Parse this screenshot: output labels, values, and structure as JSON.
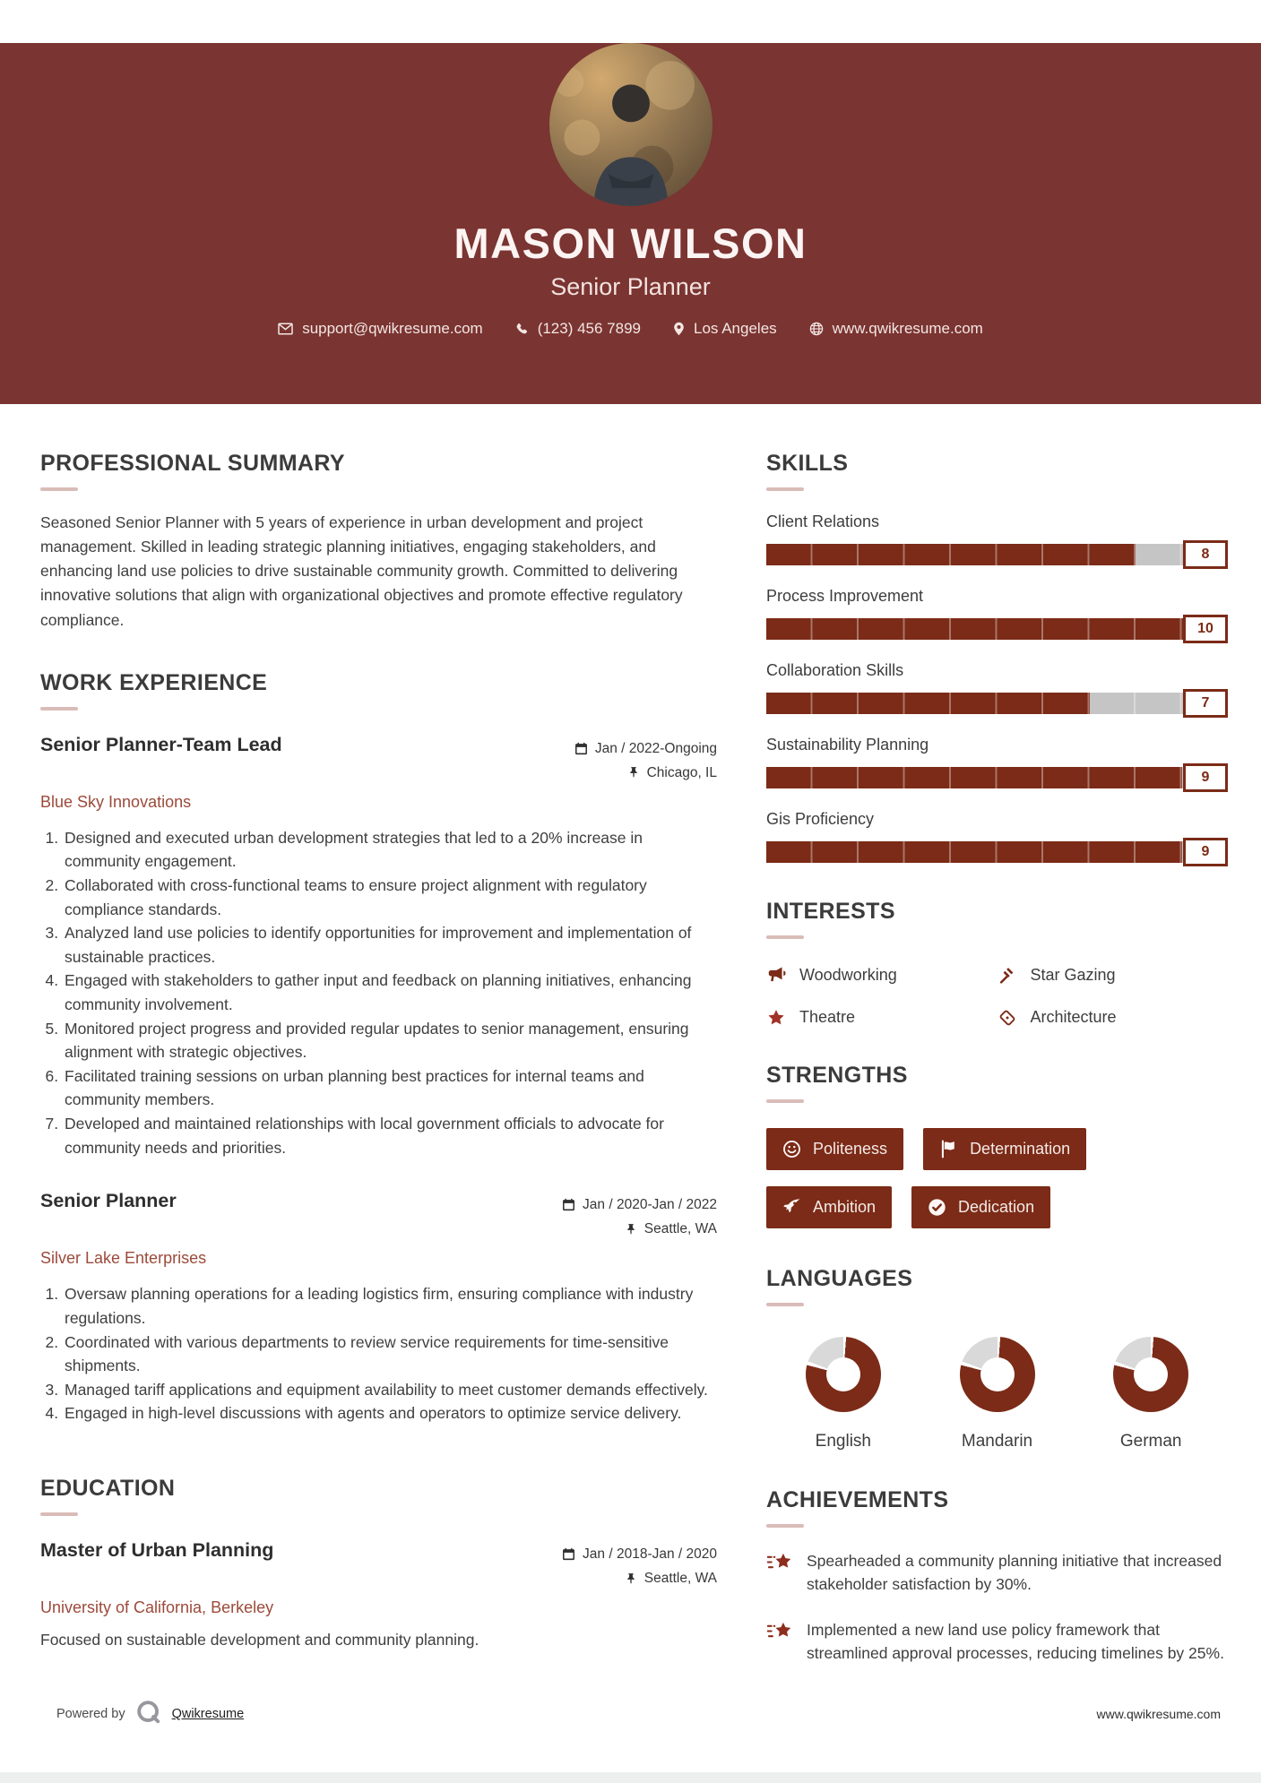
{
  "header": {
    "name": "MASON WILSON",
    "title": "Senior Planner",
    "photo_alt": "Portrait photo of a smiling man with crossed arms outdoors",
    "contact": {
      "email": "support@qwikresume.com",
      "phone": "(123) 456 7899",
      "location": "Los Angeles",
      "website": "www.qwikresume.com"
    }
  },
  "colors": {
    "header_bg": "#7a3431",
    "accent": "#7b2b17",
    "company_text": "#9c4a3a",
    "bar_empty": "#c5c5c5",
    "donut_empty": "#d9d9d9",
    "underline": "#d9bcb8"
  },
  "summary": {
    "heading": "PROFESSIONAL SUMMARY",
    "text": "Seasoned Senior Planner with 5 years of experience in urban development and project management. Skilled in leading strategic planning initiatives, engaging stakeholders, and enhancing land use policies to drive sustainable community growth. Committed to delivering innovative solutions that align with organizational objectives and promote effective regulatory compliance."
  },
  "work": {
    "heading": "WORK EXPERIENCE",
    "jobs": [
      {
        "title": "Senior Planner-Team Lead",
        "company": "Blue Sky Innovations",
        "dates": "Jan / 2022-Ongoing",
        "location": "Chicago, IL",
        "bullets": [
          "Designed and executed urban development strategies that led to a 20% increase in community engagement.",
          "Collaborated with cross-functional teams to ensure project alignment with regulatory compliance standards.",
          "Analyzed land use policies to identify opportunities for improvement and implementation of sustainable practices.",
          "Engaged with stakeholders to gather input and feedback on planning initiatives, enhancing community involvement.",
          "Monitored project progress and provided regular updates to senior management, ensuring alignment with strategic objectives.",
          "Facilitated training sessions on urban planning best practices for internal teams and community members.",
          "Developed and maintained relationships with local government officials to advocate for community needs and priorities."
        ]
      },
      {
        "title": "Senior Planner",
        "company": "Silver Lake Enterprises",
        "dates": "Jan / 2020-Jan / 2022",
        "location": "Seattle, WA",
        "bullets": [
          "Oversaw planning operations for a leading logistics firm, ensuring compliance with industry regulations.",
          "Coordinated with various departments to review service requirements for time-sensitive shipments.",
          "Managed tariff applications and equipment availability to meet customer demands effectively.",
          "Engaged in high-level discussions with agents and operators to optimize service delivery."
        ]
      }
    ]
  },
  "education": {
    "heading": "EDUCATION",
    "degree": "Master of Urban Planning",
    "school": "University of California, Berkeley",
    "dates": "Jan / 2018-Jan / 2020",
    "location": "Seattle, WA",
    "note": "Focused on sustainable development and community planning."
  },
  "skills": {
    "heading": "SKILLS",
    "max": 10,
    "items": [
      {
        "label": "Client Relations",
        "value": 8
      },
      {
        "label": "Process Improvement",
        "value": 10
      },
      {
        "label": "Collaboration Skills",
        "value": 7
      },
      {
        "label": "Sustainability Planning",
        "value": 9
      },
      {
        "label": "Gis Proficiency",
        "value": 9
      }
    ]
  },
  "interests": {
    "heading": "INTERESTS",
    "items": [
      {
        "label": "Woodworking",
        "icon": "megaphone-icon"
      },
      {
        "label": "Star Gazing",
        "icon": "gavel-icon"
      },
      {
        "label": "Theatre",
        "icon": "star-icon"
      },
      {
        "label": "Architecture",
        "icon": "ticket-icon"
      }
    ]
  },
  "strengths": {
    "heading": "STRENGTHS",
    "items": [
      {
        "label": "Politeness",
        "icon": "smiley-icon"
      },
      {
        "label": "Determination",
        "icon": "flag-icon"
      },
      {
        "label": "Ambition",
        "icon": "rocket-icon"
      },
      {
        "label": "Dedication",
        "icon": "check-circle-icon"
      }
    ]
  },
  "languages": {
    "heading": "LANGUAGES",
    "items": [
      {
        "label": "English",
        "percent": 80
      },
      {
        "label": "Mandarin",
        "percent": 80
      },
      {
        "label": "German",
        "percent": 80
      }
    ]
  },
  "achievements": {
    "heading": "ACHIEVEMENTS",
    "items": [
      "Spearheaded a community planning initiative that increased stakeholder satisfaction by 30%.",
      "Implemented a new land use policy framework that streamlined approval processes, reducing timelines by 25%."
    ]
  },
  "footer": {
    "powered_by": "Powered by",
    "brand": "Qwikresume",
    "website": "www.qwikresume.com"
  }
}
